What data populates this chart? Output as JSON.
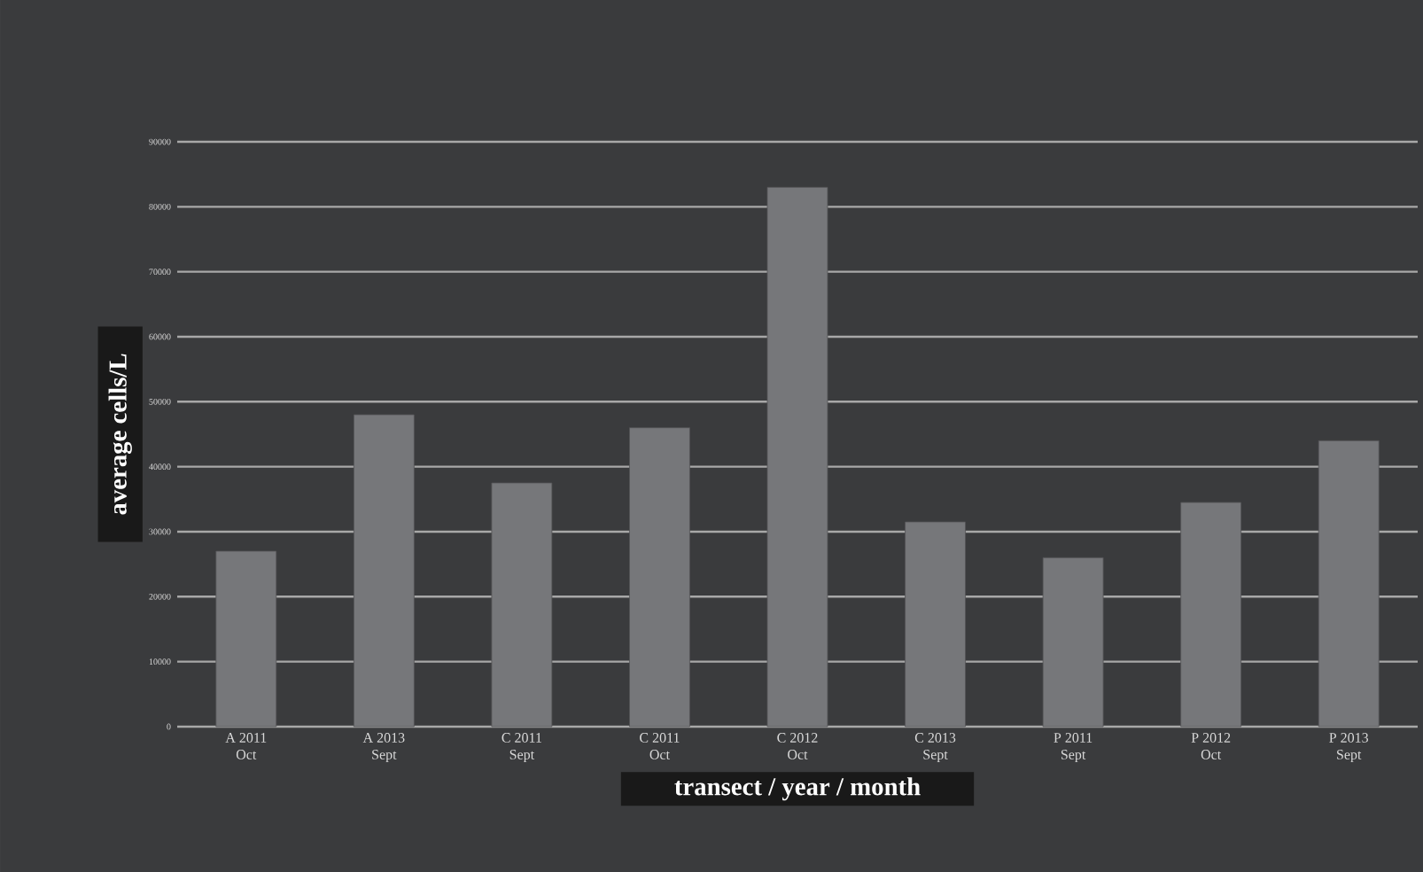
{
  "chart_data": {
    "type": "bar",
    "categories": [
      "A 2011\nOct",
      "A 2013\nSept",
      "C 2011\nSept",
      "C 2011\nOct",
      "C 2012\nOct",
      "C 2013\nSept",
      "P 2011\nSept",
      "P 2012\nOct",
      "P 2013\nSept"
    ],
    "values": [
      27000,
      48000,
      37500,
      46000,
      83000,
      31500,
      26000,
      34500,
      44000
    ],
    "color": "#76777a",
    "xlabel": "transect / year / month",
    "ylabel": "average cells/L",
    "ylim": [
      0,
      90000
    ],
    "yticks": [
      0,
      10000,
      20000,
      30000,
      40000,
      50000,
      60000,
      70000,
      80000,
      90000
    ],
    "grid": "y"
  }
}
